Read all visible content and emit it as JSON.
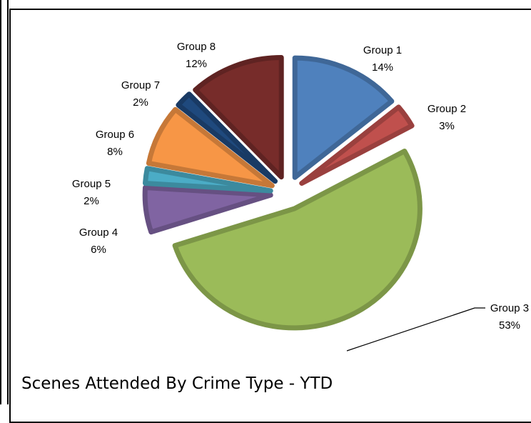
{
  "chart_data": {
    "type": "pie",
    "title": "Scenes Attended By Crime Type - YTD",
    "exploded": true,
    "legend": "none",
    "slices": [
      {
        "label": "Group 1",
        "percent_label": "14%",
        "value": 14,
        "color": "#4F81BD"
      },
      {
        "label": "Group 2",
        "percent_label": "3%",
        "value": 3,
        "color": "#C0504D"
      },
      {
        "label": "Group 3",
        "percent_label": "53%",
        "value": 53,
        "color": "#9BBB59"
      },
      {
        "label": "Group 4",
        "percent_label": "6%",
        "value": 6,
        "color": "#8064A2"
      },
      {
        "label": "Group 5",
        "percent_label": "2%",
        "value": 2,
        "color": "#4BACC6"
      },
      {
        "label": "Group 6",
        "percent_label": "8%",
        "value": 8,
        "color": "#F79646"
      },
      {
        "label": "Group 7",
        "percent_label": "2%",
        "value": 2,
        "color": "#1F497D"
      },
      {
        "label": "Group 8",
        "percent_label": "12%",
        "value": 12,
        "color": "#772C2A"
      }
    ]
  }
}
